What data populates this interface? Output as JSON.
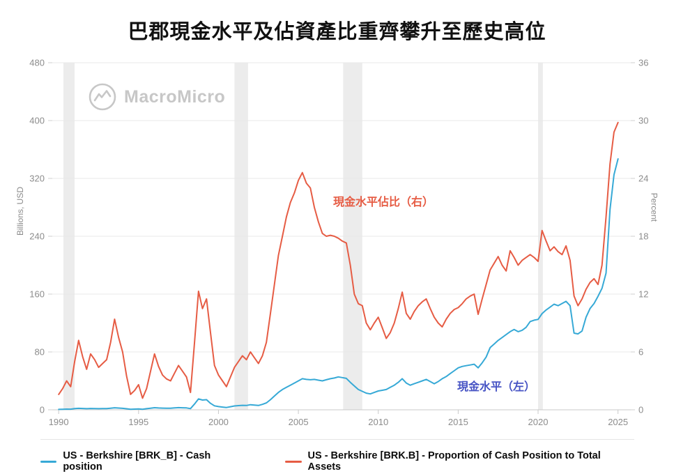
{
  "branding": {
    "watermark": "MacroMicro"
  },
  "chart_data": {
    "type": "line",
    "title": "巴郡現金水平及佔資產比重齊攀升至歷史高位",
    "x_range": [
      1989.6,
      2025.8
    ],
    "x_ticks": [
      1990,
      1995,
      2000,
      2005,
      2010,
      2015,
      2020,
      2025
    ],
    "left_axis": {
      "label": "Billions, USD",
      "range": [
        0,
        480
      ],
      "ticks": [
        0,
        80,
        160,
        240,
        320,
        400,
        480
      ]
    },
    "right_axis": {
      "label": "Percent",
      "range": [
        0,
        36
      ],
      "ticks": [
        0,
        6,
        12,
        18,
        24,
        30,
        36
      ]
    },
    "grid": true,
    "legend_position": "bottom",
    "recession_bands": [
      [
        1990.3,
        1991.0
      ],
      [
        2001.0,
        2001.85
      ],
      [
        2007.8,
        2009.0
      ],
      [
        2020.0,
        2020.3
      ]
    ],
    "annotations": [
      {
        "text": "現金水平佔比（右）",
        "x": 2010.3,
        "value": 21.7,
        "axis": "right",
        "color": "#e65c44"
      },
      {
        "text": "現金水平（左）",
        "x": 2017.4,
        "value": 34,
        "axis": "left",
        "color": "#4653c4"
      }
    ],
    "series": [
      {
        "name": "US - Berkshire [BRK_B] - Cash position",
        "axis": "left",
        "color": "#36a9d6",
        "data_name": "cash-position-line",
        "x_start": 1990,
        "x_step": 0.25,
        "values": [
          0.6,
          0.8,
          1.0,
          0.9,
          1.6,
          2.0,
          1.8,
          1.5,
          1.8,
          1.7,
          1.5,
          1.6,
          1.7,
          2.2,
          2.8,
          2.4,
          2.0,
          1.4,
          0.8,
          1.0,
          1.2,
          0.8,
          1.5,
          2.2,
          2.9,
          2.5,
          2.3,
          2.2,
          2.1,
          2.6,
          3.0,
          2.8,
          2.6,
          1.6,
          8.0,
          15.0,
          13.5,
          14.0,
          9.0,
          5.5,
          4.4,
          3.8,
          3.2,
          4.2,
          5.3,
          5.8,
          6.2,
          6.0,
          7.0,
          6.5,
          6.0,
          7.5,
          9.5,
          14,
          19,
          24,
          28,
          31,
          34,
          37,
          40,
          43,
          42,
          41.5,
          42,
          41,
          40,
          41.5,
          43,
          44,
          45.5,
          44.5,
          43.5,
          38,
          33,
          28,
          25.5,
          23,
          22,
          24,
          26,
          27,
          28,
          31,
          34,
          38,
          43,
          37,
          34,
          36,
          38,
          40,
          42,
          39,
          36,
          39,
          43,
          46,
          50,
          54,
          58,
          60,
          61,
          62,
          63,
          58,
          65,
          73,
          86,
          91,
          96,
          100,
          104,
          108,
          111,
          108,
          110,
          114,
          122,
          124,
          125,
          133,
          138,
          142,
          146,
          144,
          147,
          150,
          144,
          106,
          105,
          109,
          128,
          140,
          147,
          157,
          168,
          189,
          277,
          325,
          347
        ]
      },
      {
        "name": "US - Berkshire [BRK.B] - Proportion of Cash Position to Total Assets",
        "axis": "right",
        "color": "#e65c44",
        "data_name": "cash-proportion-line",
        "x_start": 1990,
        "x_step": 0.25,
        "values": [
          1.6,
          2.2,
          3.0,
          2.4,
          5.0,
          7.2,
          5.5,
          4.2,
          5.8,
          5.2,
          4.4,
          4.8,
          5.2,
          7.0,
          9.4,
          7.5,
          6.0,
          3.5,
          1.6,
          2.0,
          2.6,
          1.2,
          2.2,
          4.0,
          5.8,
          4.5,
          3.6,
          3.2,
          3.0,
          3.8,
          4.6,
          4.0,
          3.4,
          1.8,
          7.0,
          12.3,
          10.5,
          11.5,
          8.0,
          4.6,
          3.6,
          3.0,
          2.4,
          3.4,
          4.4,
          5.0,
          5.6,
          5.2,
          6.0,
          5.4,
          4.8,
          5.6,
          7.0,
          10.0,
          13.0,
          16.0,
          18.0,
          20.0,
          21.5,
          22.5,
          23.8,
          24.6,
          23.5,
          23.0,
          21.0,
          19.5,
          18.3,
          18.0,
          18.1,
          18.0,
          17.8,
          17.5,
          17.3,
          15.0,
          12.0,
          11.0,
          10.8,
          9.0,
          8.3,
          9.0,
          9.6,
          8.5,
          7.4,
          8.0,
          9.0,
          10.5,
          12.2,
          10.0,
          9.4,
          10.2,
          10.8,
          11.2,
          11.5,
          10.5,
          9.6,
          9.0,
          8.6,
          9.4,
          10.0,
          10.4,
          10.6,
          11.0,
          11.5,
          11.8,
          12.0,
          9.9,
          11.5,
          13.0,
          14.5,
          15.2,
          15.9,
          15.0,
          14.4,
          16.5,
          15.8,
          15.0,
          15.5,
          15.8,
          16.1,
          15.8,
          15.4,
          18.6,
          17.5,
          16.5,
          16.9,
          16.4,
          16.1,
          17.0,
          15.5,
          11.8,
          10.8,
          11.5,
          12.5,
          13.2,
          13.6,
          13.0,
          15.0,
          20.0,
          25.5,
          28.8,
          29.8
        ]
      }
    ]
  }
}
